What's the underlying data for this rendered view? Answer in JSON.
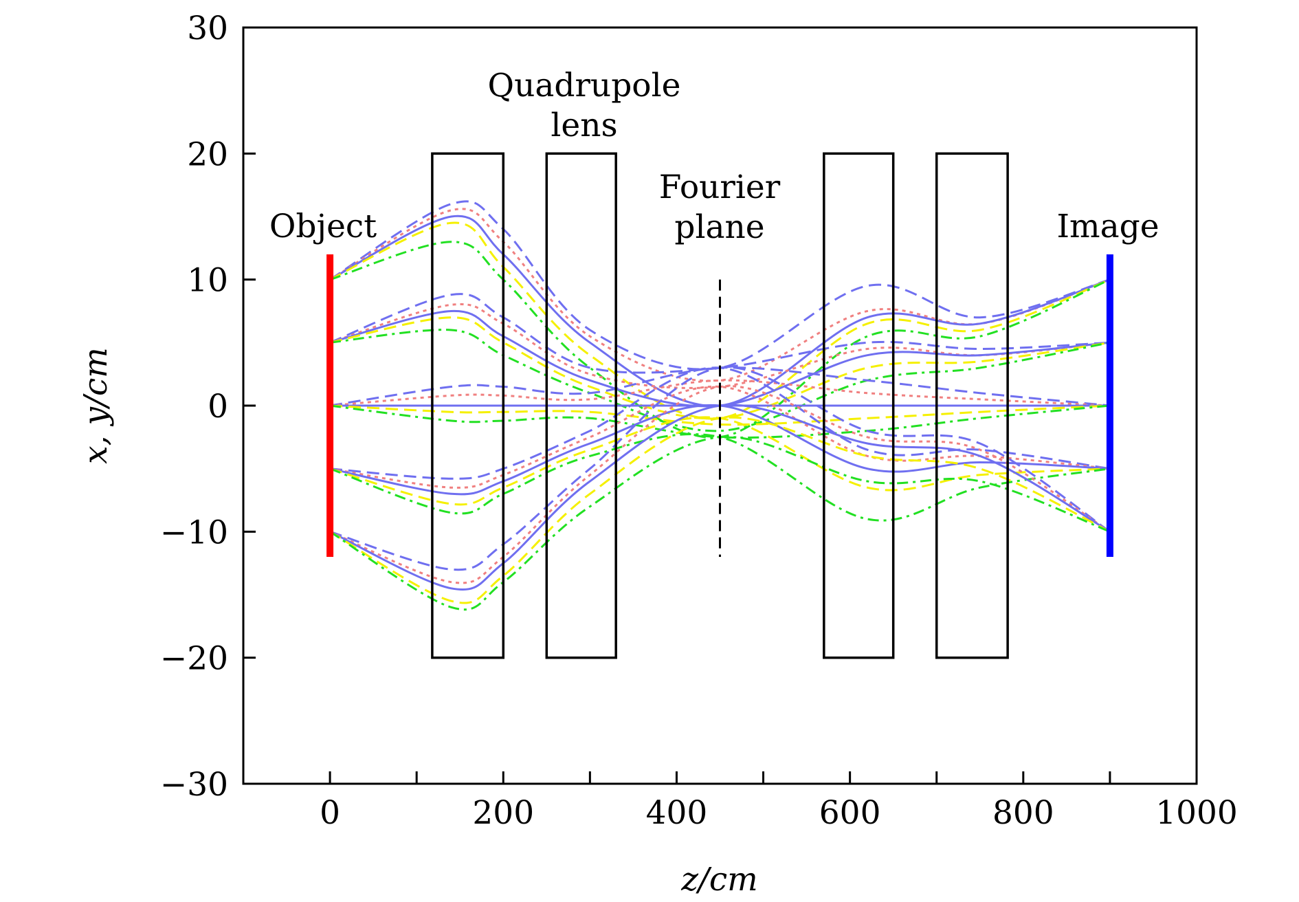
{
  "chart_data": {
    "type": "line",
    "xlabel": "z/cm",
    "ylabel": "x, y/cm",
    "xlim": [
      -100,
      1000
    ],
    "ylim": [
      -30,
      30
    ],
    "x_ticks": [
      0,
      200,
      400,
      600,
      800,
      1000
    ],
    "x_minor_ticks": [
      100,
      300,
      500,
      700,
      900
    ],
    "y_ticks": [
      30,
      20,
      10,
      0,
      -10,
      -20,
      -30
    ],
    "y_tick_labels": [
      "30",
      "20",
      "10",
      "0",
      "−10",
      "−20",
      "−30"
    ],
    "grid": false,
    "colors": {
      "object": "#ff0000",
      "image": "#0000ff",
      "blue": "#6f6ff0",
      "salmon": "#f08080",
      "yellow": "#f5f000",
      "green": "#22e022"
    },
    "annotations": {
      "quadrupole_line1": "Quadrupole",
      "quadrupole_line2": "lens",
      "object": "Object",
      "fourier_line1": "Fourier",
      "fourier_line2": "plane",
      "image": "Image"
    },
    "elements": {
      "object_plane": {
        "z": 0,
        "y_range": [
          -12,
          12
        ]
      },
      "image_plane": {
        "z": 900,
        "y_range": [
          -12,
          12
        ]
      },
      "fourier_plane": {
        "z": 450,
        "y_range": [
          -12,
          10
        ]
      },
      "lenses": [
        {
          "z_start": 118,
          "z_end": 200,
          "y_range": [
            -20,
            20
          ]
        },
        {
          "z_start": 250,
          "z_end": 330,
          "y_range": [
            -20,
            20
          ]
        },
        {
          "z_start": 570,
          "z_end": 650,
          "y_range": [
            -20,
            20
          ]
        },
        {
          "z_start": 700,
          "z_end": 782,
          "y_range": [
            -20,
            20
          ]
        }
      ]
    },
    "series": [
      {
        "color": "blue",
        "dash": "long",
        "x": [
          0,
          140,
          200,
          300,
          450,
          620,
          750,
          900
        ],
        "values": [
          10,
          16,
          14,
          6,
          3,
          9.5,
          7,
          10
        ]
      },
      {
        "color": "salmon",
        "dash": "dot",
        "x": [
          0,
          140,
          200,
          300,
          450,
          620,
          750,
          900
        ],
        "values": [
          10,
          15.5,
          13,
          5.5,
          2,
          7.5,
          6.5,
          10
        ]
      },
      {
        "color": "blue",
        "dash": "solid",
        "x": [
          0,
          140,
          200,
          300,
          450,
          620,
          750,
          900
        ],
        "values": [
          10,
          15,
          12,
          5,
          0,
          7,
          6.5,
          10
        ]
      },
      {
        "color": "yellow",
        "dash": "long",
        "x": [
          0,
          140,
          200,
          300,
          450,
          620,
          750,
          900
        ],
        "values": [
          10,
          14.5,
          11,
          4,
          -1,
          6.5,
          6,
          10
        ]
      },
      {
        "color": "green",
        "dash": "dashdot",
        "x": [
          0,
          140,
          200,
          300,
          450,
          620,
          750,
          900
        ],
        "values": [
          10,
          13,
          10,
          3,
          -2.5,
          5.5,
          5.5,
          10
        ]
      },
      {
        "color": "blue",
        "dash": "long",
        "x": [
          0,
          140,
          200,
          300,
          450,
          620,
          750,
          900
        ],
        "values": [
          5,
          8.8,
          7,
          3,
          3,
          5,
          4.5,
          5
        ]
      },
      {
        "color": "salmon",
        "dash": "dot",
        "x": [
          0,
          140,
          200,
          300,
          450,
          620,
          750,
          900
        ],
        "values": [
          5,
          8,
          6.5,
          2.5,
          1.5,
          4.5,
          4,
          5
        ]
      },
      {
        "color": "blue",
        "dash": "solid",
        "x": [
          0,
          140,
          200,
          300,
          450,
          620,
          750,
          900
        ],
        "values": [
          5,
          7.5,
          5.5,
          2,
          0,
          4,
          4,
          5
        ]
      },
      {
        "color": "yellow",
        "dash": "long",
        "x": [
          0,
          140,
          200,
          300,
          450,
          620,
          750,
          900
        ],
        "values": [
          5,
          7,
          5,
          1.5,
          -1,
          3,
          3.5,
          5
        ]
      },
      {
        "color": "green",
        "dash": "dashdot",
        "x": [
          0,
          140,
          200,
          300,
          450,
          620,
          750,
          900
        ],
        "values": [
          5,
          6,
          4,
          1,
          -2,
          2,
          3,
          5
        ]
      },
      {
        "color": "blue",
        "dash": "long",
        "x": [
          0,
          140,
          200,
          300,
          450,
          620,
          750,
          900
        ],
        "values": [
          0,
          1.5,
          1.5,
          1,
          3,
          2,
          1,
          0
        ]
      },
      {
        "color": "salmon",
        "dash": "dot",
        "x": [
          0,
          140,
          200,
          300,
          450,
          620,
          750,
          900
        ],
        "values": [
          0,
          0.8,
          0.8,
          0.5,
          2,
          1,
          0.5,
          0
        ]
      },
      {
        "color": "blue",
        "dash": "solid",
        "x": [
          0,
          140,
          200,
          300,
          450,
          620,
          750,
          900
        ],
        "values": [
          0,
          0,
          0,
          0,
          0,
          0,
          0,
          0
        ]
      },
      {
        "color": "yellow",
        "dash": "long",
        "x": [
          0,
          140,
          200,
          300,
          450,
          620,
          750,
          900
        ],
        "values": [
          0,
          -0.5,
          -0.5,
          -0.5,
          -1.5,
          -1,
          -0.5,
          0
        ]
      },
      {
        "color": "green",
        "dash": "dashdot",
        "x": [
          0,
          140,
          200,
          300,
          450,
          620,
          750,
          900
        ],
        "values": [
          0,
          -1.2,
          -1.2,
          -1,
          -2.5,
          -2,
          -1,
          0
        ]
      },
      {
        "color": "blue",
        "dash": "long",
        "x": [
          0,
          140,
          200,
          300,
          450,
          620,
          750,
          900
        ],
        "values": [
          -5,
          -5.8,
          -5,
          -2,
          3,
          -3.5,
          -3.5,
          -5
        ]
      },
      {
        "color": "salmon",
        "dash": "dot",
        "x": [
          0,
          140,
          200,
          300,
          450,
          620,
          750,
          900
        ],
        "values": [
          -5,
          -6.5,
          -5.5,
          -2.5,
          1.5,
          -4,
          -4,
          -5
        ]
      },
      {
        "color": "blue",
        "dash": "solid",
        "x": [
          0,
          140,
          200,
          300,
          450,
          620,
          750,
          900
        ],
        "values": [
          -5,
          -7,
          -6,
          -3,
          0,
          -5,
          -4.5,
          -5
        ]
      },
      {
        "color": "yellow",
        "dash": "long",
        "x": [
          0,
          140,
          200,
          300,
          450,
          620,
          750,
          900
        ],
        "values": [
          -5,
          -7.8,
          -6.5,
          -3.5,
          -1,
          -6.5,
          -5.5,
          -5
        ]
      },
      {
        "color": "green",
        "dash": "dashdot",
        "x": [
          0,
          140,
          200,
          300,
          450,
          620,
          750,
          900
        ],
        "values": [
          -5,
          -8.5,
          -7,
          -4,
          -2.5,
          -9,
          -6.5,
          -5
        ]
      },
      {
        "color": "blue",
        "dash": "long",
        "x": [
          0,
          140,
          200,
          300,
          450,
          620,
          750,
          900
        ],
        "values": [
          -10,
          -13,
          -11,
          -5,
          3,
          -2,
          -3,
          -10
        ]
      },
      {
        "color": "salmon",
        "dash": "dot",
        "x": [
          0,
          140,
          200,
          300,
          450,
          620,
          750,
          900
        ],
        "values": [
          -10,
          -14,
          -12,
          -5.5,
          1.5,
          -2.5,
          -3.5,
          -10
        ]
      },
      {
        "color": "blue",
        "dash": "solid",
        "x": [
          0,
          140,
          200,
          300,
          450,
          620,
          750,
          900
        ],
        "values": [
          -10,
          -14.5,
          -12.5,
          -6,
          0,
          -3,
          -4,
          -10
        ]
      },
      {
        "color": "yellow",
        "dash": "long",
        "x": [
          0,
          140,
          200,
          300,
          450,
          620,
          750,
          900
        ],
        "values": [
          -10,
          -15.5,
          -13.5,
          -7,
          -1,
          -4,
          -5,
          -10
        ]
      },
      {
        "color": "green",
        "dash": "dashdot",
        "x": [
          0,
          140,
          200,
          300,
          450,
          620,
          750,
          900
        ],
        "values": [
          -10,
          -16,
          -14,
          -8,
          -2.5,
          -6,
          -6,
          -10
        ]
      }
    ]
  }
}
